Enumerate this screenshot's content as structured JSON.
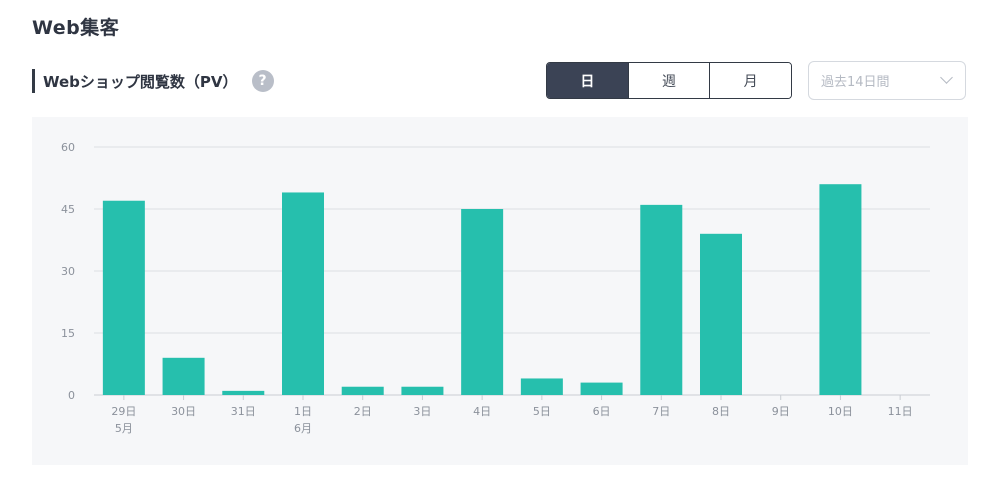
{
  "section_title": "Web集客",
  "chart_header": {
    "title": "Webショップ閲覧数（PV）",
    "help_icon_glyph": "?"
  },
  "period_tabs": [
    {
      "label": "日",
      "active": true
    },
    {
      "label": "週",
      "active": false
    },
    {
      "label": "月",
      "active": false
    }
  ],
  "period_select": {
    "value": "過去14日間",
    "icon": "chevron-down-icon"
  },
  "colors": {
    "bar": "#26bfad",
    "panel_bg": "#f6f7f9",
    "active_tab": "#3b4355",
    "gridline": "#dcdfe4"
  },
  "chart_data": {
    "type": "bar",
    "categories": [
      "29日",
      "30日",
      "31日",
      "1日",
      "2日",
      "3日",
      "4日",
      "5日",
      "6日",
      "7日",
      "8日",
      "9日",
      "10日",
      "11日"
    ],
    "sub_labels": [
      "5月",
      "",
      "",
      "6月",
      "",
      "",
      "",
      "",
      "",
      "",
      "",
      "",
      "",
      ""
    ],
    "values": [
      47,
      9,
      1,
      49,
      2,
      2,
      45,
      4,
      3,
      46,
      39,
      0,
      51,
      0
    ],
    "yticks": [
      0,
      15,
      30,
      45,
      60
    ],
    "ylim": [
      0,
      60
    ],
    "title": "",
    "xlabel": "",
    "ylabel": "",
    "grid": true
  }
}
